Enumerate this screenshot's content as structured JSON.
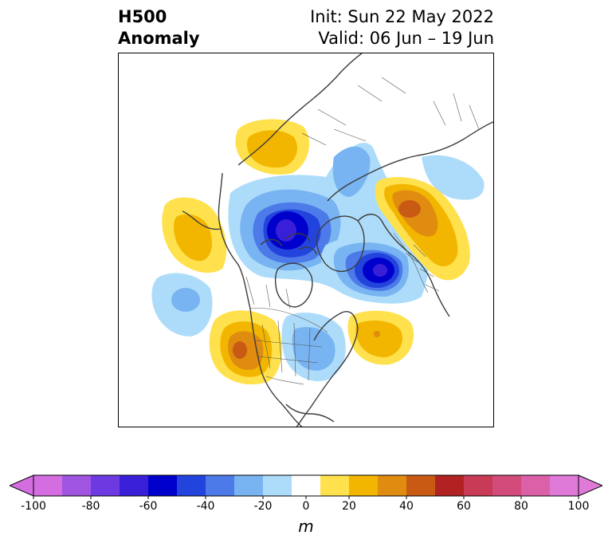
{
  "title": {
    "left_line1": "H500",
    "left_line2": "Anomaly",
    "right_line1": "Init: Sun 22 May 2022",
    "right_line2": "Valid: 06 Jun – 19 Jun"
  },
  "colorbar": {
    "units": "m",
    "ticks": [
      "-100",
      "-80",
      "-60",
      "-40",
      "-20",
      "0",
      "20",
      "40",
      "60",
      "80",
      "100"
    ],
    "extend": "both",
    "under_color": "#d36de0",
    "over_color": "#e07ad8",
    "levels": [
      -100,
      -90,
      -80,
      -70,
      -60,
      -50,
      -40,
      -30,
      -20,
      -10,
      10,
      20,
      30,
      40,
      50,
      60,
      70,
      80,
      90,
      100
    ],
    "colors": [
      "#d36de0",
      "#a055e0",
      "#6c3ae0",
      "#3a1fd8",
      "#0000cc",
      "#2244dd",
      "#4c7ae8",
      "#78b4f2",
      "#addcfa",
      "#ffffff",
      "#ffe14d",
      "#f2b600",
      "#e08c10",
      "#c85a14",
      "#b22222",
      "#c83a55",
      "#d24b7a",
      "#dc60a8",
      "#e07ad8"
    ]
  },
  "map": {
    "projection": "north-polar-stereographic",
    "colors": {
      "neg10": "#addcfa",
      "neg20": "#78b4f2",
      "neg30": "#4c7ae8",
      "neg40": "#2244dd",
      "neg50": "#0000cc",
      "neg60": "#3a1fd8",
      "pos10": "#ffe14d",
      "pos20": "#f2b600",
      "pos30": "#e08c10",
      "pos40": "#c85a14",
      "coast": "#3c3c3c",
      "border": "#555555"
    }
  }
}
